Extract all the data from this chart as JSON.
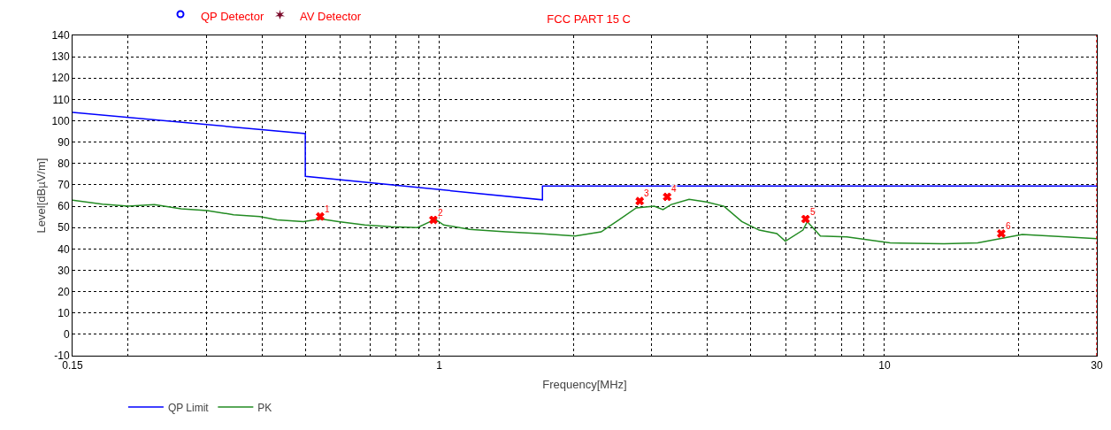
{
  "chart_data": {
    "type": "line",
    "title": "FCC PART 15 C",
    "xlabel": "Frequency[MHz]",
    "ylabel": "Level[dBµV/m]",
    "annotations": [
      "QP Detector",
      "AV Detector",
      {
        "text": "1",
        "x": 0.54,
        "y": 55.2
      },
      {
        "text": "2",
        "x": 0.97,
        "y": 53.6
      },
      {
        "text": "3",
        "x": 2.82,
        "y": 62.4
      },
      {
        "text": "4",
        "x": 3.25,
        "y": 64.4
      },
      {
        "text": "5",
        "x": 6.65,
        "y": 54
      },
      {
        "text": "6",
        "x": 18.3,
        "y": 47.2
      }
    ],
    "series": [
      {
        "name": "QP Limit",
        "color": "#0000ff",
        "x": [
          0.15,
          0.5,
          0.5,
          1.705,
          1.705,
          30
        ],
        "values": [
          104,
          94,
          74,
          63,
          69.5,
          69.5
        ]
      },
      {
        "name": "PK",
        "color": "#228b22",
        "x": [
          0.15,
          0.175,
          0.2,
          0.229,
          0.263,
          0.301,
          0.345,
          0.395,
          0.432,
          0.495,
          0.542,
          0.594,
          0.68,
          0.779,
          0.893,
          0.955,
          0.978,
          1.023,
          1.17,
          1.41,
          1.68,
          2.02,
          2.31,
          2.53,
          2.77,
          3.04,
          3.18,
          3.32,
          3.64,
          3.98,
          4.36,
          4.78,
          5.23,
          5.73,
          5.99,
          6.56,
          6.71,
          7.18,
          8.23,
          10.3,
          13.6,
          16.2,
          20.4,
          25.6,
          30
        ],
        "values": [
          62.8,
          61,
          60,
          60.8,
          58.8,
          58,
          56,
          55.2,
          53.6,
          52.8,
          54,
          52.8,
          51.2,
          50.4,
          50,
          52.8,
          54,
          51.2,
          49.2,
          48,
          47.2,
          46,
          48,
          53.6,
          59.2,
          60,
          58.4,
          60.8,
          63.2,
          62,
          60,
          52.8,
          48.8,
          47.2,
          43.6,
          48.8,
          52.8,
          46,
          45.6,
          42.8,
          42.4,
          42.8,
          46.8,
          45.6,
          44.8
        ]
      },
      {
        "type": "scatter",
        "marker": "cross",
        "color": "#ff0000",
        "x": [
          0.54,
          0.97,
          2.82,
          3.25,
          6.65,
          18.3
        ],
        "values": [
          55.2,
          53.6,
          62.4,
          64.4,
          54,
          47.2
        ]
      }
    ],
    "log": "x",
    "grid": true,
    "legend": "bottom left",
    "xlim": [
      0.15,
      30
    ],
    "xticks": [
      0.15,
      {
        "value": 0.2,
        "label": null
      },
      {
        "value": 0.3,
        "label": null
      },
      {
        "value": 0.4,
        "label": null
      },
      {
        "value": 0.5,
        "label": null
      },
      {
        "value": 0.6,
        "label": null
      },
      {
        "value": 0.7,
        "label": null
      },
      {
        "value": 0.8,
        "label": null
      },
      {
        "value": 0.9,
        "label": null
      },
      1,
      {
        "value": 2,
        "label": null
      },
      {
        "value": 3,
        "label": null
      },
      {
        "value": 4,
        "label": null
      },
      {
        "value": 5,
        "label": null
      },
      {
        "value": 6,
        "label": null
      },
      {
        "value": 7,
        "label": null
      },
      {
        "value": 8,
        "label": null
      },
      {
        "value": 9,
        "label": null
      },
      10,
      {
        "value": 20,
        "label": null
      },
      30
    ],
    "ylim": [
      -10,
      140
    ],
    "yticks": [
      -10,
      0,
      10,
      20,
      30,
      40,
      50,
      60,
      70,
      80,
      90,
      100,
      110,
      120,
      130,
      140
    ],
    "ref_lines": [
      {
        "axis": "x",
        "value": 30,
        "color": "#ff0000",
        "line_style": "dotted"
      }
    ]
  }
}
